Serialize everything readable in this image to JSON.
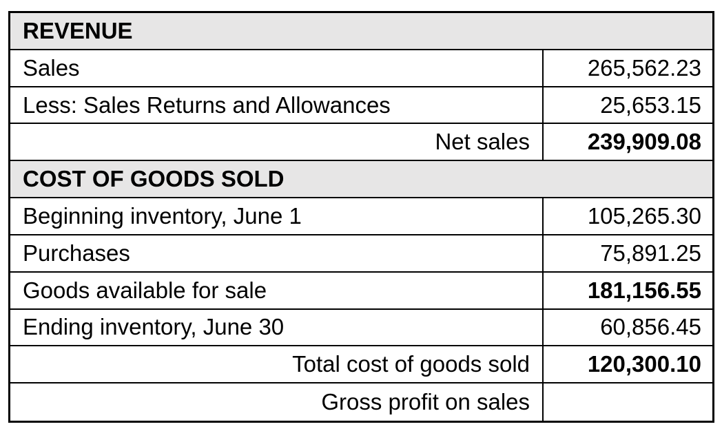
{
  "revenue": {
    "title": "REVENUE",
    "sales_label": "Sales",
    "sales_value": "265,562.23",
    "returns_label": "Less: Sales Returns and Allowances",
    "returns_value": "25,653.15",
    "net_sales_label": "Net sales",
    "net_sales_value": "239,909.08"
  },
  "cogs": {
    "title": "COST OF GOODS SOLD",
    "beginning_label": "Beginning inventory, June 1",
    "beginning_value": "105,265.30",
    "purchases_label": "Purchases",
    "purchases_value": "75,891.25",
    "available_label": "Goods available for sale",
    "available_value": "181,156.55",
    "ending_label": "Ending inventory, June 30",
    "ending_value": "60,856.45",
    "total_label": "Total cost of goods sold",
    "total_value": "120,300.10"
  },
  "gross_profit": {
    "label": "Gross profit on sales",
    "value": ""
  },
  "colors": {
    "header_background": "#e7e6e6",
    "border": "#000000"
  }
}
